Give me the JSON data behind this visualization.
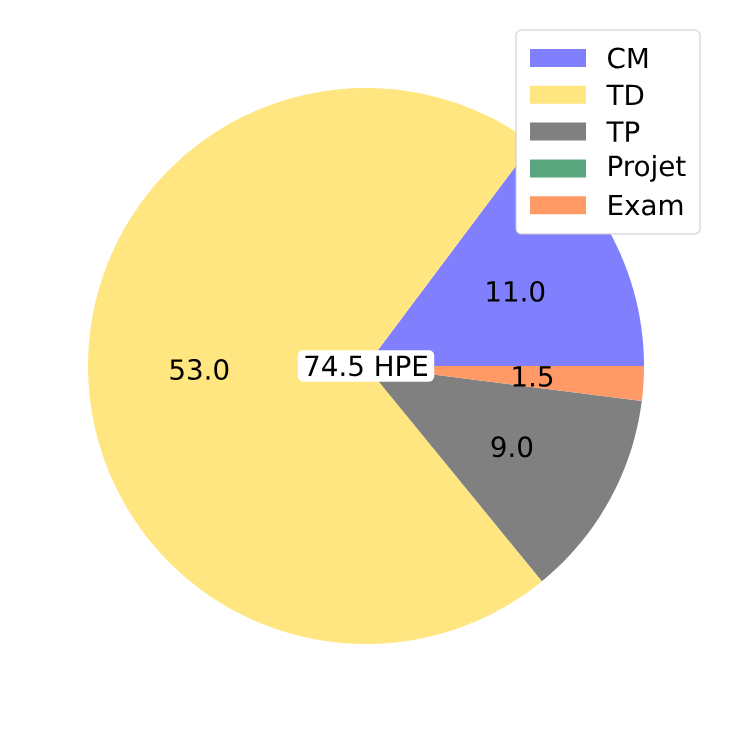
{
  "chart_data": {
    "type": "pie",
    "categories": [
      "CM",
      "TD",
      "TP",
      "Projet",
      "Exam"
    ],
    "values": [
      11.0,
      53.0,
      9.0,
      0,
      1.5
    ],
    "colors": [
      "#8080ff",
      "#ffe680",
      "#808080",
      "#5aa77f",
      "#ff9966"
    ],
    "value_labels": [
      "11.0",
      "53.0",
      "9.0",
      null,
      "1.5"
    ],
    "legend": "top right",
    "annotations": [
      "74.5 HPE"
    ]
  }
}
